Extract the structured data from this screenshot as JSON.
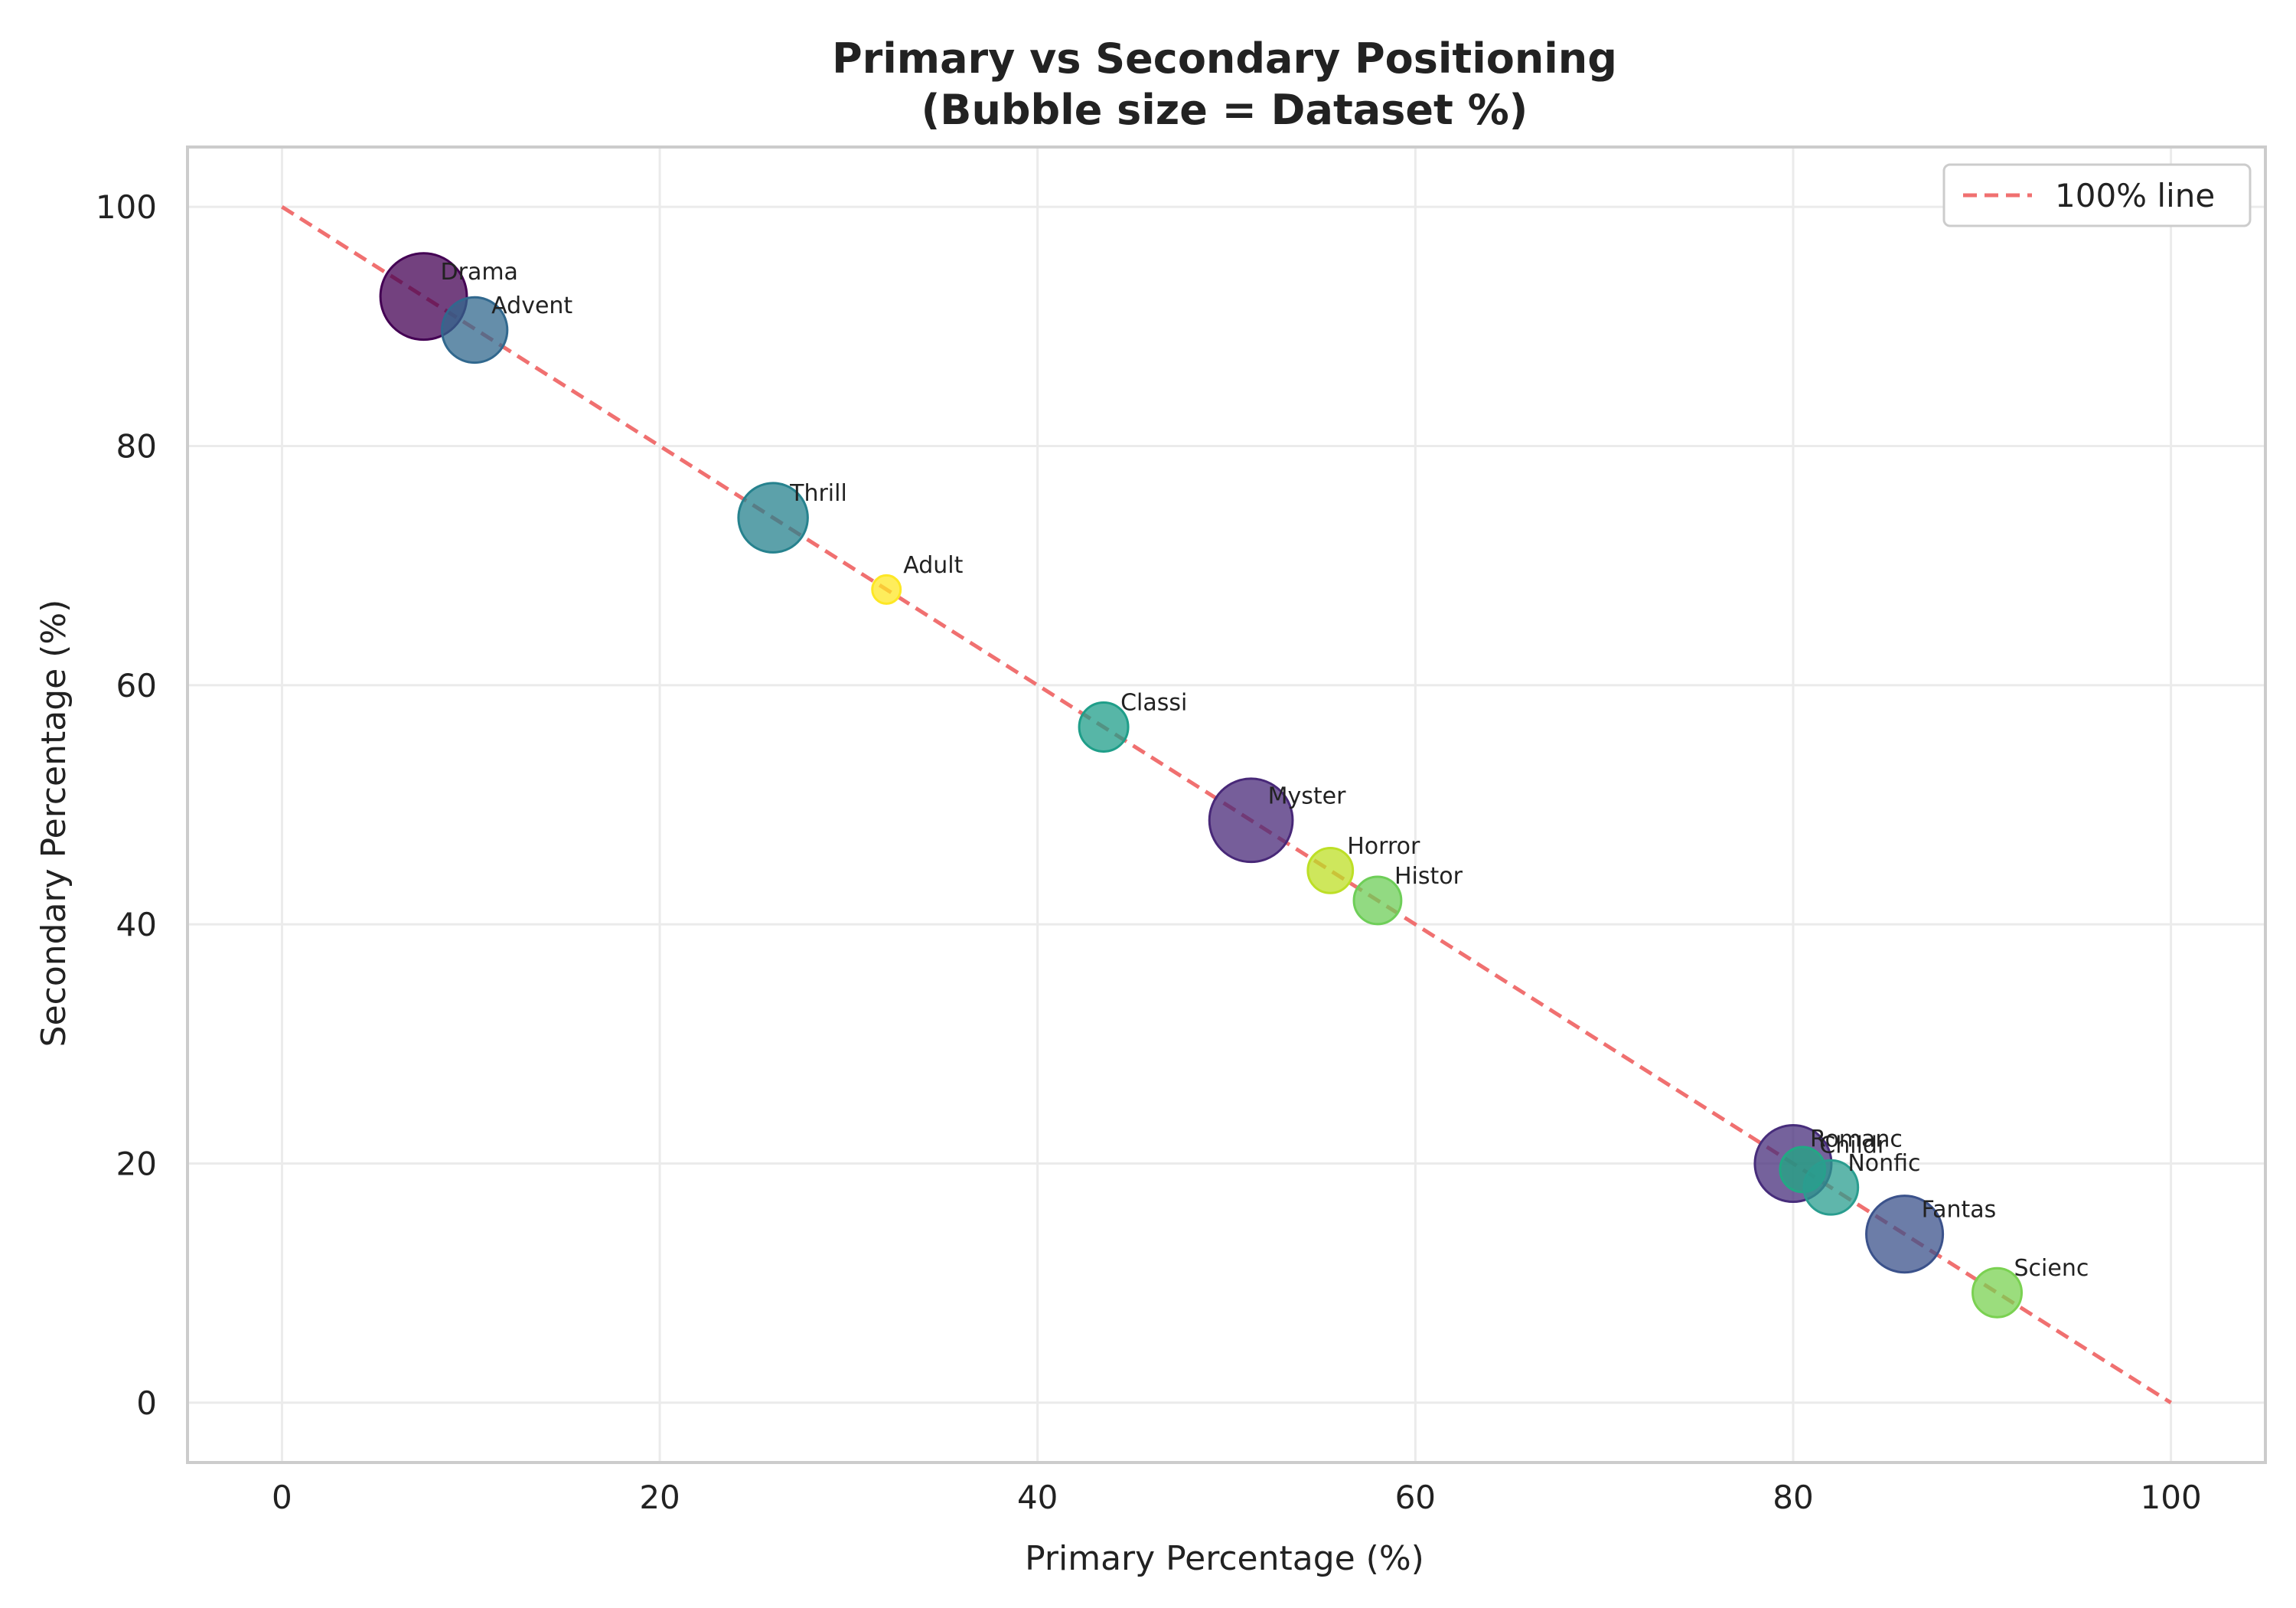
{
  "chart_data": {
    "type": "scatter",
    "subtype": "bubble",
    "title": "Primary vs Secondary Positioning",
    "subtitle": "(Bubble size = Dataset %)",
    "xlabel": "Primary Percentage (%)",
    "ylabel": "Secondary Percentage (%)",
    "xlim": [
      -5,
      105
    ],
    "ylim": [
      -5,
      105
    ],
    "xticks": [
      0,
      20,
      40,
      60,
      80,
      100
    ],
    "yticks": [
      0,
      20,
      40,
      60,
      80,
      100
    ],
    "grid": true,
    "legend": {
      "position": "top-right",
      "entries": [
        {
          "label": "100% line",
          "color": "#f07070",
          "style": "dashed"
        }
      ]
    },
    "reference_line": {
      "x": [
        0,
        100
      ],
      "y": [
        100,
        0
      ],
      "label": "100% line",
      "color": "#f07070"
    },
    "points": [
      {
        "label": "Drama",
        "x": 7.5,
        "y": 92.5,
        "size": 14.0,
        "color": "#440154"
      },
      {
        "label": "Advent",
        "x": 10.2,
        "y": 89.7,
        "size": 8.0,
        "color": "#31688e"
      },
      {
        "label": "Thrill",
        "x": 26.0,
        "y": 74.0,
        "size": 9.0,
        "color": "#26828e"
      },
      {
        "label": "Adult",
        "x": 32.0,
        "y": 68.0,
        "size": 1.5,
        "color": "#fde725"
      },
      {
        "label": "Classi",
        "x": 43.5,
        "y": 56.5,
        "size": 4.5,
        "color": "#1f9e89"
      },
      {
        "label": "Myster",
        "x": 51.3,
        "y": 48.7,
        "size": 13.0,
        "color": "#482878"
      },
      {
        "label": "Horror",
        "x": 55.5,
        "y": 44.5,
        "size": 3.8,
        "color": "#bddf26"
      },
      {
        "label": "Histor",
        "x": 58.0,
        "y": 42.0,
        "size": 4.2,
        "color": "#6ece58"
      },
      {
        "label": "Romanc",
        "x": 80.0,
        "y": 20.0,
        "size": 11.0,
        "color": "#472d7b"
      },
      {
        "label": "Childr",
        "x": 80.5,
        "y": 19.5,
        "size": 3.8,
        "color": "#22a884"
      },
      {
        "label": "Nonfic",
        "x": 82.0,
        "y": 18.0,
        "size": 5.5,
        "color": "#2a9d8f"
      },
      {
        "label": "Fantas",
        "x": 85.9,
        "y": 14.1,
        "size": 11.0,
        "color": "#3b528b"
      },
      {
        "label": "Scienc",
        "x": 90.8,
        "y": 9.2,
        "size": 4.5,
        "color": "#7ad151"
      }
    ]
  }
}
